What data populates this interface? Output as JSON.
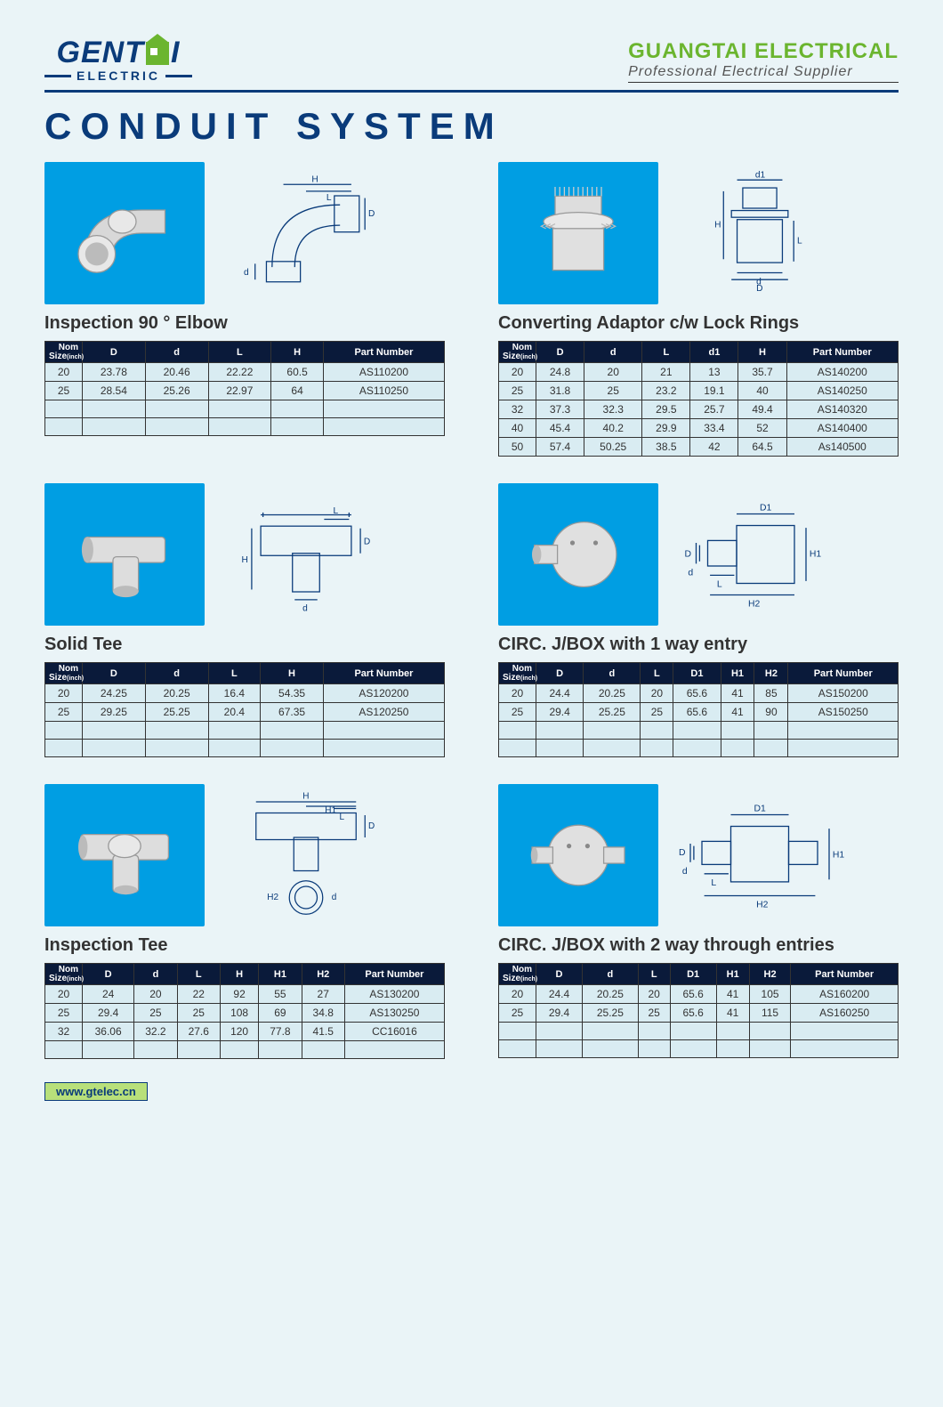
{
  "header": {
    "logo_left_main_1": "GENT",
    "logo_left_main_2": "I",
    "logo_left_sub": "ELECTRIC",
    "logo_right_main": "GUANGTAI ELECTRICAL",
    "logo_right_sub": "Professional Electrical Supplier"
  },
  "page_title": "CONDUIT SYSTEM",
  "footer_url": "www.gtelec.cn",
  "colors": {
    "photo_bg": "#009ee3",
    "page_bg": "#eaf4f7",
    "brand_blue": "#0a3b7a",
    "brand_green": "#6bb52f",
    "table_header_bg": "#0a1a3a",
    "table_body_bg": "#d9ecf2"
  },
  "products": [
    {
      "id": "elbow",
      "title": "Inspection 90 °   Elbow",
      "columns": [
        "Size",
        "D",
        "d",
        "L",
        "H",
        "Part Number"
      ],
      "rows": [
        [
          "20",
          "23.78",
          "20.46",
          "22.22",
          "60.5",
          "AS110200"
        ],
        [
          "25",
          "28.54",
          "25.26",
          "22.97",
          "64",
          "AS110250"
        ],
        [
          "",
          "",
          "",
          "",
          "",
          ""
        ],
        [
          "",
          "",
          "",
          "",
          "",
          ""
        ]
      ]
    },
    {
      "id": "adaptor",
      "title": "Converting Adaptor c/w Lock Rings",
      "columns": [
        "Size",
        "D",
        "d",
        "L",
        "d1",
        "H",
        "Part Number"
      ],
      "rows": [
        [
          "20",
          "24.8",
          "20",
          "21",
          "13",
          "35.7",
          "AS140200"
        ],
        [
          "25",
          "31.8",
          "25",
          "23.2",
          "19.1",
          "40",
          "AS140250"
        ],
        [
          "32",
          "37.3",
          "32.3",
          "29.5",
          "25.7",
          "49.4",
          "AS140320"
        ],
        [
          "40",
          "45.4",
          "40.2",
          "29.9",
          "33.4",
          "52",
          "AS140400"
        ],
        [
          "50",
          "57.4",
          "50.25",
          "38.5",
          "42",
          "64.5",
          "As140500"
        ]
      ]
    },
    {
      "id": "solidtee",
      "title": "Solid Tee",
      "columns": [
        "Size",
        "D",
        "d",
        "L",
        "H",
        "Part Number"
      ],
      "rows": [
        [
          "20",
          "24.25",
          "20.25",
          "16.4",
          "54.35",
          "AS120200"
        ],
        [
          "25",
          "29.25",
          "25.25",
          "20.4",
          "67.35",
          "AS120250"
        ],
        [
          "",
          "",
          "",
          "",
          "",
          ""
        ],
        [
          "",
          "",
          "",
          "",
          "",
          ""
        ]
      ]
    },
    {
      "id": "jbox1",
      "title": "CIRC. J/BOX with 1 way entry",
      "columns": [
        "Size",
        "D",
        "d",
        "L",
        "D1",
        "H1",
        "H2",
        "Part Number"
      ],
      "rows": [
        [
          "20",
          "24.4",
          "20.25",
          "20",
          "65.6",
          "41",
          "85",
          "AS150200"
        ],
        [
          "25",
          "29.4",
          "25.25",
          "25",
          "65.6",
          "41",
          "90",
          "AS150250"
        ],
        [
          "",
          "",
          "",
          "",
          "",
          "",
          "",
          ""
        ],
        [
          "",
          "",
          "",
          "",
          "",
          "",
          "",
          ""
        ]
      ]
    },
    {
      "id": "insptee",
      "title": "Inspection Tee",
      "columns": [
        "Size",
        "D",
        "d",
        "L",
        "H",
        "H1",
        "H2",
        "Part Number"
      ],
      "rows": [
        [
          "20",
          "24",
          "20",
          "22",
          "92",
          "55",
          "27",
          "AS130200"
        ],
        [
          "25",
          "29.4",
          "25",
          "25",
          "108",
          "69",
          "34.8",
          "AS130250"
        ],
        [
          "32",
          "36.06",
          "32.2",
          "27.6",
          "120",
          "77.8",
          "41.5",
          "CC16016"
        ],
        [
          "",
          "",
          "",
          "",
          "",
          "",
          "",
          ""
        ]
      ]
    },
    {
      "id": "jbox2",
      "title": "CIRC. J/BOX with 2 way through entries",
      "columns": [
        "Size",
        "D",
        "d",
        "L",
        "D1",
        "H1",
        "H2",
        "Part Number"
      ],
      "rows": [
        [
          "20",
          "24.4",
          "20.25",
          "20",
          "65.6",
          "41",
          "105",
          "AS160200"
        ],
        [
          "25",
          "29.4",
          "25.25",
          "25",
          "65.6",
          "41",
          "115",
          "AS160250"
        ],
        [
          "",
          "",
          "",
          "",
          "",
          "",
          "",
          ""
        ],
        [
          "",
          "",
          "",
          "",
          "",
          "",
          "",
          ""
        ]
      ]
    }
  ]
}
